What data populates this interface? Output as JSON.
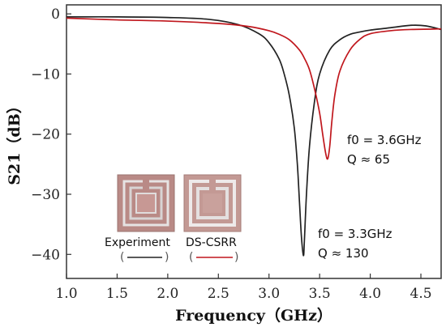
{
  "chart_data": {
    "type": "line",
    "xlabel": "Frequency（GHz）",
    "ylabel": "S21（dB）",
    "xlim": [
      1.0,
      4.7
    ],
    "ylim": [
      -44,
      1.5
    ],
    "x_ticks": [
      1.0,
      1.5,
      2.0,
      2.5,
      3.0,
      3.5,
      4.0,
      4.5
    ],
    "x_tick_labels": [
      "1.0",
      "1.5",
      "2.0",
      "2.5",
      "3.0",
      "3.5",
      "4.0",
      "4.5"
    ],
    "y_ticks": [
      0,
      -10,
      -20,
      -30,
      -40
    ],
    "y_tick_labels": [
      "0",
      "−10",
      "−20",
      "−30",
      "−40"
    ],
    "grid": false,
    "series": [
      {
        "name": "Experiment",
        "color": "#222222",
        "x": [
          1.0,
          1.5,
          2.0,
          2.4,
          2.7,
          2.9,
          3.0,
          3.1,
          3.15,
          3.2,
          3.25,
          3.28,
          3.3,
          3.32,
          3.34,
          3.35,
          3.37,
          3.4,
          3.45,
          3.5,
          3.6,
          3.7,
          3.8,
          3.9,
          4.0,
          4.2,
          4.4,
          4.55,
          4.7
        ],
        "y": [
          -0.5,
          -0.5,
          -0.6,
          -0.9,
          -1.8,
          -3.3,
          -4.8,
          -7.5,
          -10.0,
          -13.5,
          -19.0,
          -25.0,
          -31.0,
          -37.0,
          -40.2,
          -37.5,
          -30.0,
          -22.0,
          -14.5,
          -10.0,
          -6.0,
          -4.3,
          -3.4,
          -3.0,
          -2.7,
          -2.3,
          -1.9,
          -2.0,
          -2.6
        ]
      },
      {
        "name": "DS-CSRR",
        "color": "#c0171d",
        "x": [
          1.0,
          1.5,
          2.0,
          2.5,
          2.8,
          3.0,
          3.1,
          3.2,
          3.3,
          3.35,
          3.4,
          3.45,
          3.5,
          3.53,
          3.56,
          3.58,
          3.6,
          3.62,
          3.65,
          3.7,
          3.8,
          3.9,
          4.0,
          4.2,
          4.4,
          4.7
        ],
        "y": [
          -0.7,
          -1.0,
          -1.2,
          -1.6,
          -2.1,
          -2.8,
          -3.4,
          -4.3,
          -6.0,
          -7.4,
          -9.3,
          -12.5,
          -16.5,
          -20.0,
          -23.2,
          -24.1,
          -22.0,
          -18.0,
          -13.5,
          -9.5,
          -6.0,
          -4.2,
          -3.3,
          -2.8,
          -2.6,
          -2.5
        ]
      }
    ],
    "annotations": [
      {
        "line1": "f0 = 3.6GHz",
        "line2": "Q  ≈ 65"
      },
      {
        "line1": "f0 = 3.3GHz",
        "line2": "Q  ≈ 130"
      }
    ],
    "legend": {
      "placement": "lower-left",
      "entries": [
        {
          "label": "Experiment",
          "color": "#222222"
        },
        {
          "label": "DS-CSRR",
          "color": "#c0171d"
        }
      ]
    }
  }
}
